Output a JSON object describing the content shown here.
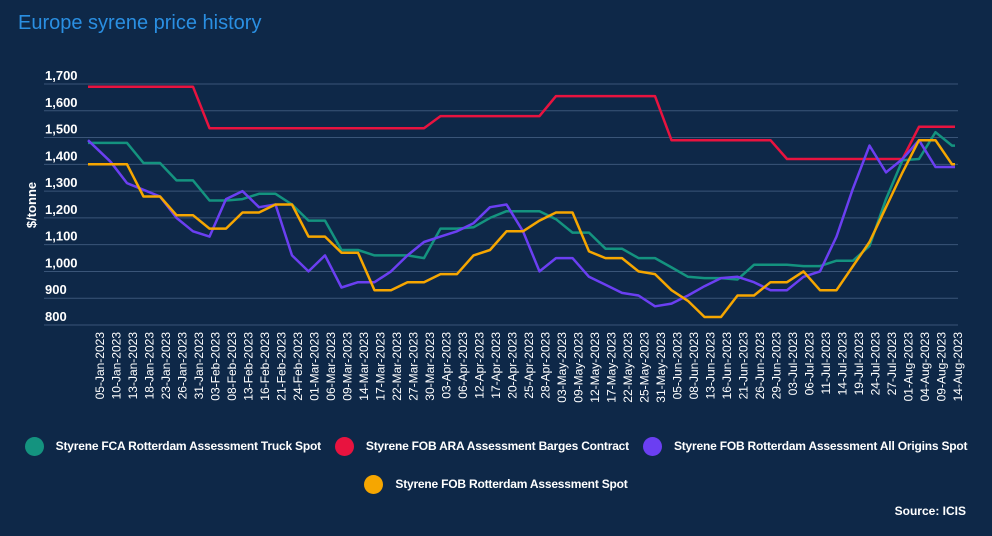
{
  "title": "Europe syrene price history",
  "source": "Source: ICIS",
  "chart_data": {
    "type": "line",
    "title": "Europe syrene price history",
    "xlabel": "",
    "ylabel": "$/tonne",
    "ylim": [
      800,
      1700
    ],
    "yticks": [
      "1,700",
      "1,600",
      "1,500",
      "1,400",
      "1,300",
      "1,200",
      "1,100",
      "1,000",
      "900",
      "800"
    ],
    "ytick_values": [
      1700,
      1600,
      1500,
      1400,
      1300,
      1200,
      1100,
      1000,
      900,
      800
    ],
    "grid": true,
    "legend_position": "bottom",
    "categories": [
      "05-Jan-2023",
      "10-Jan-2023",
      "13-Jan-2023",
      "18-Jan-2023",
      "23-Jan-2023",
      "26-Jan-2023",
      "31-Jan-2023",
      "03-Feb-2023",
      "08-Feb-2023",
      "13-Feb-2023",
      "16-Feb-2023",
      "21-Feb-2023",
      "24-Feb-2023",
      "01-Mar-2023",
      "06-Mar-2023",
      "09-Mar-2023",
      "14-Mar-2023",
      "17-Mar-2023",
      "22-Mar-2023",
      "27-Mar-2023",
      "30-Mar-2023",
      "03-Apr-2023",
      "06-Apr-2023",
      "12-Apr-2023",
      "17-Apr-2023",
      "20-Apr-2023",
      "25-Apr-2023",
      "28-Apr-2023",
      "03-May-2023",
      "09-May-2023",
      "12-May-2023",
      "17-May-2023",
      "22-May-2023",
      "25-May-2023",
      "31-May-2023",
      "05-Jun-2023",
      "08-Jun-2023",
      "13-Jun-2023",
      "16-Jun-2023",
      "21-Jun-2023",
      "26-Jun-2023",
      "29-Jun-2023",
      "03-Jul-2023",
      "06-Jul-2023",
      "11-Jul-2023",
      "14-Jul-2023",
      "19-Jul-2023",
      "24-Jul-2023",
      "27-Jul-2023",
      "01-Aug-2023",
      "04-Aug-2023",
      "09-Aug-2023",
      "14-Aug-2023"
    ],
    "series": [
      {
        "name": "Styrene FCA Rotterdam Assessment Truck Spot",
        "color": "#14937f",
        "values": [
          1480,
          1480,
          1480,
          1405,
          1405,
          1340,
          1340,
          1265,
          1265,
          1270,
          1290,
          1290,
          1250,
          1190,
          1190,
          1080,
          1080,
          1060,
          1060,
          1060,
          1050,
          1160,
          1160,
          1165,
          1200,
          1225,
          1225,
          1225,
          1195,
          1145,
          1145,
          1085,
          1085,
          1050,
          1050,
          1015,
          980,
          975,
          975,
          970,
          1025,
          1025,
          1025,
          1020,
          1020,
          1040,
          1040,
          1095,
          1270,
          1415,
          1420,
          1520,
          1470
        ]
      },
      {
        "name": "Styrene FOB ARA Assessment Barges Contract",
        "color": "#e8133f",
        "values": [
          1690,
          1690,
          1690,
          1690,
          1690,
          1690,
          1690,
          1535,
          1535,
          1535,
          1535,
          1535,
          1535,
          1535,
          1535,
          1535,
          1535,
          1535,
          1535,
          1535,
          1535,
          1580,
          1580,
          1580,
          1580,
          1580,
          1580,
          1580,
          1655,
          1655,
          1655,
          1655,
          1655,
          1655,
          1655,
          1490,
          1490,
          1490,
          1490,
          1490,
          1490,
          1490,
          1420,
          1420,
          1420,
          1420,
          1420,
          1420,
          1420,
          1420,
          1540,
          1540,
          1540
        ]
      },
      {
        "name": "Styrene FOB Rotterdam Assessment All Origins Spot",
        "color": "#6b3ff2",
        "values": [
          1490,
          1410,
          1330,
          1305,
          1280,
          1200,
          1150,
          1130,
          1270,
          1300,
          1240,
          1250,
          1060,
          1000,
          1060,
          940,
          960,
          960,
          1000,
          1060,
          1110,
          1130,
          1150,
          1180,
          1240,
          1250,
          1150,
          1000,
          1050,
          1050,
          980,
          950,
          920,
          910,
          870,
          880,
          910,
          945,
          975,
          980,
          960,
          930,
          930,
          980,
          1000,
          1130,
          1310,
          1470,
          1370,
          1420,
          1490,
          1390,
          1390
        ]
      },
      {
        "name": "Styrene FOB Rotterdam Assessment Spot",
        "color": "#f6a600",
        "values": [
          1400,
          1400,
          1400,
          1280,
          1280,
          1210,
          1210,
          1160,
          1160,
          1220,
          1220,
          1250,
          1250,
          1130,
          1130,
          1070,
          1070,
          930,
          930,
          960,
          960,
          990,
          990,
          1060,
          1080,
          1150,
          1150,
          1190,
          1220,
          1220,
          1075,
          1050,
          1050,
          1000,
          990,
          930,
          890,
          830,
          830,
          910,
          910,
          960,
          960,
          1000,
          930,
          930,
          1020,
          1110,
          1240,
          1370,
          1490,
          1490,
          1400
        ]
      }
    ]
  }
}
